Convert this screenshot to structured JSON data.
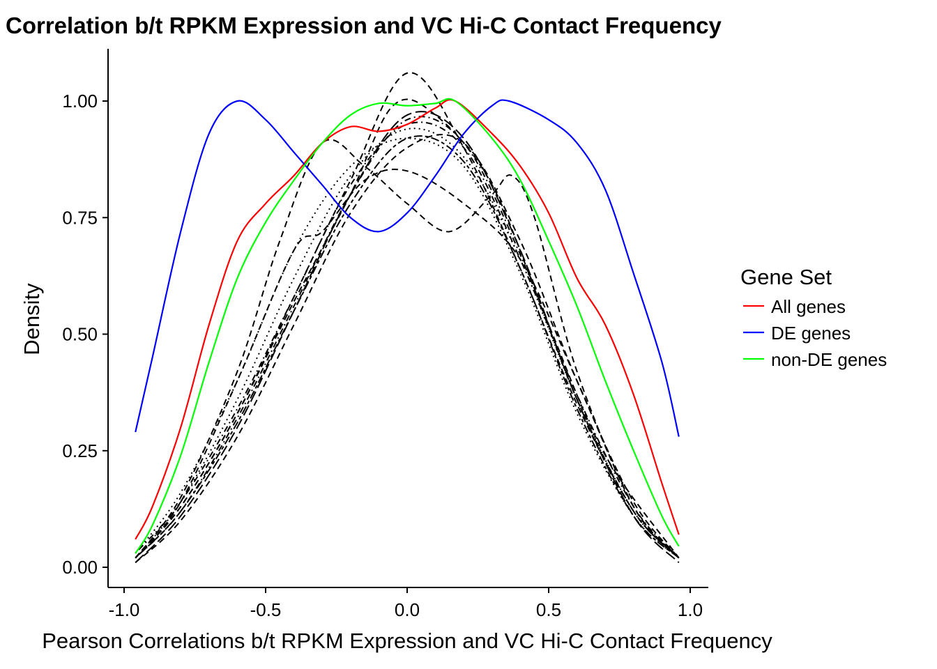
{
  "chart_data": {
    "type": "line",
    "title": "Correlation b/t RPKM Expression and VC Hi-C Contact Frequency",
    "xlabel": "Pearson Correlations b/t RPKM Expression and VC Hi-C Contact Frequency",
    "ylabel": "Density",
    "xlim": [
      -1.06,
      1.06
    ],
    "ylim": [
      -0.04,
      1.1
    ],
    "xticks": [
      -1.0,
      -0.5,
      0.0,
      0.5,
      1.0
    ],
    "xtick_labels": [
      "-1.0",
      "-0.5",
      "0.0",
      "0.5",
      "1.0"
    ],
    "yticks": [
      0.0,
      0.25,
      0.5,
      0.75,
      1.0
    ],
    "ytick_labels": [
      "0.00",
      "0.25",
      "0.50",
      "0.75",
      "1.00"
    ],
    "grid": false,
    "legend": {
      "title": "Gene Set",
      "placement": "right"
    },
    "series": [
      {
        "name": "All genes",
        "color": "#ff0000",
        "x": [
          -0.96,
          -0.9,
          -0.8,
          -0.7,
          -0.6,
          -0.5,
          -0.4,
          -0.3,
          -0.2,
          -0.1,
          0,
          0.1,
          0.17,
          0.3,
          0.4,
          0.5,
          0.6,
          0.7,
          0.8,
          0.9,
          0.96
        ],
        "y": [
          0.06,
          0.13,
          0.3,
          0.52,
          0.7,
          0.78,
          0.84,
          0.91,
          0.945,
          0.935,
          0.95,
          0.985,
          1.0,
          0.93,
          0.86,
          0.76,
          0.62,
          0.52,
          0.37,
          0.18,
          0.07
        ]
      },
      {
        "name": "DE genes",
        "color": "#0000ff",
        "x": [
          -0.96,
          -0.9,
          -0.8,
          -0.7,
          -0.6,
          -0.5,
          -0.4,
          -0.3,
          -0.2,
          -0.1,
          0,
          0.1,
          0.2,
          0.3,
          0.36,
          0.5,
          0.6,
          0.7,
          0.8,
          0.9,
          0.96
        ],
        "y": [
          0.29,
          0.45,
          0.72,
          0.93,
          1.0,
          0.96,
          0.89,
          0.82,
          0.75,
          0.72,
          0.76,
          0.84,
          0.93,
          0.99,
          1.0,
          0.96,
          0.91,
          0.81,
          0.63,
          0.44,
          0.28
        ]
      },
      {
        "name": "non-DE genes",
        "color": "#00ff00",
        "x": [
          -0.96,
          -0.9,
          -0.8,
          -0.7,
          -0.6,
          -0.5,
          -0.4,
          -0.3,
          -0.2,
          -0.1,
          0,
          0.1,
          0.17,
          0.3,
          0.4,
          0.5,
          0.6,
          0.7,
          0.8,
          0.9,
          0.96
        ],
        "y": [
          0.03,
          0.09,
          0.24,
          0.44,
          0.62,
          0.74,
          0.83,
          0.91,
          0.97,
          0.995,
          0.99,
          0.995,
          1.0,
          0.92,
          0.83,
          0.7,
          0.56,
          0.4,
          0.25,
          0.11,
          0.045
        ]
      }
    ],
    "background_series": [
      {
        "linetype": "dashed",
        "x": [
          -0.96,
          -0.8,
          -0.6,
          -0.4,
          -0.2,
          0,
          0.2,
          0.4,
          0.6,
          0.8,
          0.96
        ],
        "y": [
          0.02,
          0.13,
          0.33,
          0.58,
          0.83,
          1.06,
          0.9,
          0.64,
          0.35,
          0.12,
          0.02
        ]
      },
      {
        "linetype": "dashed",
        "x": [
          -0.96,
          -0.8,
          -0.6,
          -0.45,
          -0.3,
          -0.15,
          0,
          0.15,
          0.3,
          0.37,
          0.45,
          0.6,
          0.8,
          0.96
        ],
        "y": [
          0.02,
          0.15,
          0.42,
          0.7,
          0.91,
          0.86,
          0.78,
          0.72,
          0.8,
          0.84,
          0.75,
          0.42,
          0.13,
          0.02
        ]
      },
      {
        "linetype": "dashed",
        "x": [
          -0.96,
          -0.8,
          -0.6,
          -0.4,
          -0.3,
          -0.15,
          0,
          0.2,
          0.4,
          0.6,
          0.8,
          0.96
        ],
        "y": [
          0.02,
          0.14,
          0.4,
          0.68,
          0.72,
          0.83,
          0.85,
          0.78,
          0.66,
          0.4,
          0.13,
          0.02
        ]
      },
      {
        "linetype": "dotted",
        "x": [
          -0.96,
          -0.8,
          -0.6,
          -0.4,
          -0.2,
          0,
          0.2,
          0.4,
          0.6,
          0.8,
          0.96
        ],
        "y": [
          0.02,
          0.14,
          0.36,
          0.62,
          0.84,
          0.94,
          0.88,
          0.66,
          0.36,
          0.12,
          0.02
        ]
      },
      {
        "linetype": "dotdash",
        "x": [
          -0.96,
          -0.8,
          -0.6,
          -0.4,
          -0.2,
          0,
          0.2,
          0.4,
          0.6,
          0.8,
          0.96
        ],
        "y": [
          0.03,
          0.14,
          0.34,
          0.58,
          0.82,
          0.95,
          0.9,
          0.66,
          0.37,
          0.13,
          0.02
        ]
      },
      {
        "linetype": "longdash",
        "x": [
          -0.96,
          -0.8,
          -0.6,
          -0.4,
          -0.2,
          0,
          0.2,
          0.4,
          0.6,
          0.8,
          0.96
        ],
        "y": [
          0.01,
          0.11,
          0.3,
          0.55,
          0.8,
          0.97,
          0.92,
          0.68,
          0.36,
          0.11,
          0.01
        ]
      },
      {
        "linetype": "twodash",
        "x": [
          -0.96,
          -0.8,
          -0.6,
          -0.4,
          -0.2,
          0,
          0.2,
          0.4,
          0.6,
          0.8,
          0.96
        ],
        "y": [
          0.02,
          0.12,
          0.31,
          0.55,
          0.78,
          0.92,
          0.87,
          0.64,
          0.34,
          0.11,
          0.02
        ]
      },
      {
        "linetype": "dashed",
        "x": [
          -0.96,
          -0.8,
          -0.6,
          -0.4,
          -0.2,
          -0.05,
          0.1,
          0.3,
          0.5,
          0.7,
          0.96
        ],
        "y": [
          0.02,
          0.13,
          0.33,
          0.57,
          0.8,
          0.99,
          0.97,
          0.82,
          0.52,
          0.24,
          0.02
        ]
      },
      {
        "linetype": "dotted",
        "x": [
          -0.96,
          -0.8,
          -0.6,
          -0.4,
          -0.2,
          0,
          0.2,
          0.4,
          0.6,
          0.8,
          0.96
        ],
        "y": [
          0.03,
          0.16,
          0.4,
          0.68,
          0.86,
          0.92,
          0.86,
          0.63,
          0.33,
          0.11,
          0.02
        ]
      },
      {
        "linetype": "dashed",
        "x": [
          -0.96,
          -0.8,
          -0.6,
          -0.4,
          -0.2,
          0,
          0.2,
          0.4,
          0.6,
          0.8,
          0.96
        ],
        "y": [
          0.01,
          0.1,
          0.28,
          0.52,
          0.76,
          0.9,
          0.91,
          0.7,
          0.4,
          0.14,
          0.02
        ]
      },
      {
        "linetype": "dotdash",
        "x": [
          -0.96,
          -0.8,
          -0.6,
          -0.4,
          -0.2,
          0,
          0.2,
          0.4,
          0.6,
          0.8,
          0.96
        ],
        "y": [
          0.02,
          0.12,
          0.32,
          0.56,
          0.8,
          0.96,
          0.91,
          0.67,
          0.36,
          0.12,
          0.02
        ]
      }
    ]
  }
}
